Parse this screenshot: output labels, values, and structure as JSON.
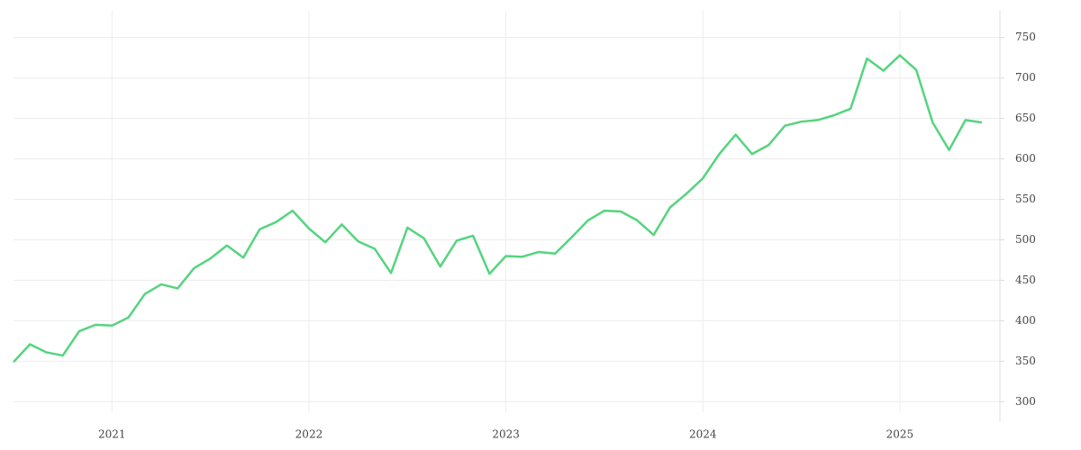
{
  "chart_data": {
    "type": "line",
    "categories": [
      null,
      null,
      null,
      null,
      null,
      null,
      "2021",
      null,
      null,
      null,
      null,
      null,
      null,
      null,
      null,
      null,
      null,
      null,
      "2022",
      null,
      null,
      null,
      null,
      null,
      null,
      null,
      null,
      null,
      null,
      null,
      "2023",
      null,
      null,
      null,
      null,
      null,
      null,
      null,
      null,
      null,
      null,
      null,
      "2024",
      null,
      null,
      null,
      null,
      null,
      null,
      null,
      null,
      null,
      null,
      null,
      "2025",
      null,
      null,
      null,
      null,
      null
    ],
    "series": [
      {
        "color": "#55d47f",
        "values": [
          349,
          371,
          361,
          357,
          387,
          395,
          394,
          404,
          433,
          445,
          440,
          465,
          477,
          493,
          478,
          513,
          522,
          536,
          514,
          497,
          519,
          498,
          489,
          459,
          515,
          502,
          467,
          499,
          505,
          458,
          480,
          479,
          485,
          483,
          503,
          524,
          536,
          535,
          524,
          506,
          540,
          557,
          576,
          606,
          630,
          606,
          617,
          641,
          646,
          648,
          654,
          662,
          724,
          709,
          728,
          710,
          645,
          611,
          648,
          645
        ]
      }
    ],
    "ylim": [
      287,
      783
    ],
    "yticks": [
      300,
      350,
      400,
      450,
      500,
      550,
      600,
      650,
      700,
      750
    ],
    "grid": true
  }
}
